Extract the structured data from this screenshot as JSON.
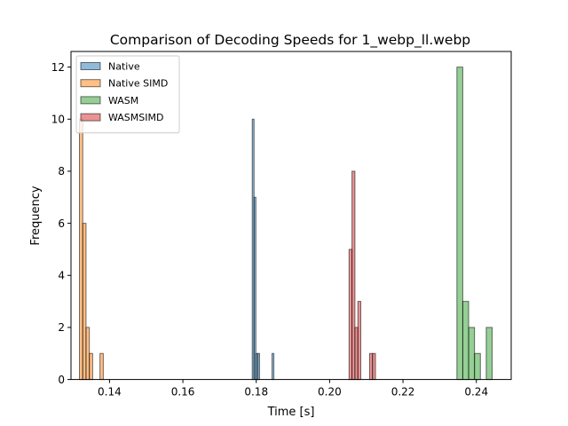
{
  "chart_data": {
    "type": "bar",
    "title": "Comparison of Decoding Speeds for 1_webp_ll.webp",
    "xlabel": "Time [s]",
    "ylabel": "Frequency",
    "xlim": [
      0.1295,
      0.2495
    ],
    "ylim": [
      0,
      12.6
    ],
    "xticks": [
      0.14,
      0.16,
      0.18,
      0.2,
      0.22,
      0.24
    ],
    "xtick_labels": [
      "0.14",
      "0.16",
      "0.18",
      "0.20",
      "0.22",
      "0.24"
    ],
    "yticks": [
      0,
      2,
      4,
      6,
      8,
      10,
      12
    ],
    "ytick_labels": [
      "0",
      "2",
      "4",
      "6",
      "8",
      "10",
      "12"
    ],
    "legend_position": "upper-left",
    "grid": false,
    "series": [
      {
        "name": "Native",
        "color": "#1f77b4",
        "alpha": 0.5,
        "bins": [
          {
            "x0": 0.1789,
            "x1": 0.1794,
            "count": 10
          },
          {
            "x0": 0.1794,
            "x1": 0.1799,
            "count": 7
          },
          {
            "x0": 0.1799,
            "x1": 0.1804,
            "count": 1
          },
          {
            "x0": 0.1804,
            "x1": 0.1809,
            "count": 1
          },
          {
            "x0": 0.1843,
            "x1": 0.1848,
            "count": 1
          }
        ]
      },
      {
        "name": "Native SIMD",
        "color": "#ff7f0e",
        "alpha": 0.5,
        "bins": [
          {
            "x0": 0.1318,
            "x1": 0.1327,
            "count": 10
          },
          {
            "x0": 0.1327,
            "x1": 0.1336,
            "count": 6
          },
          {
            "x0": 0.1336,
            "x1": 0.1345,
            "count": 2
          },
          {
            "x0": 0.1345,
            "x1": 0.1354,
            "count": 1
          },
          {
            "x0": 0.1374,
            "x1": 0.1383,
            "count": 1
          }
        ]
      },
      {
        "name": "WASM",
        "color": "#2ca02c",
        "alpha": 0.5,
        "bins": [
          {
            "x0": 0.2347,
            "x1": 0.2363,
            "count": 12
          },
          {
            "x0": 0.2363,
            "x1": 0.2379,
            "count": 3
          },
          {
            "x0": 0.2379,
            "x1": 0.2395,
            "count": 2
          },
          {
            "x0": 0.2395,
            "x1": 0.2411,
            "count": 1
          },
          {
            "x0": 0.2427,
            "x1": 0.2443,
            "count": 2
          }
        ]
      },
      {
        "name": "WASMSIMD",
        "color": "#d62728",
        "alpha": 0.5,
        "bins": [
          {
            "x0": 0.2053,
            "x1": 0.2061,
            "count": 5
          },
          {
            "x0": 0.2061,
            "x1": 0.2069,
            "count": 8
          },
          {
            "x0": 0.2069,
            "x1": 0.2077,
            "count": 2
          },
          {
            "x0": 0.2077,
            "x1": 0.2085,
            "count": 3
          },
          {
            "x0": 0.2109,
            "x1": 0.2117,
            "count": 1
          },
          {
            "x0": 0.2117,
            "x1": 0.2125,
            "count": 1
          }
        ]
      }
    ]
  }
}
